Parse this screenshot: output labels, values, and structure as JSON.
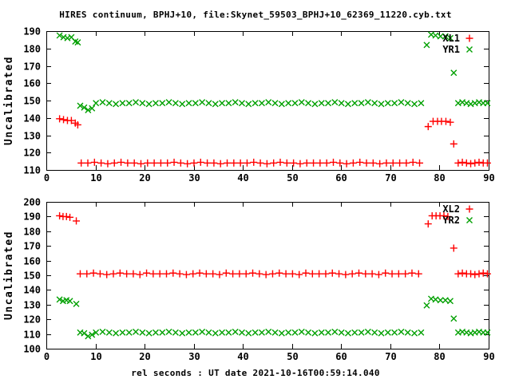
{
  "title": "HIRES continuum, BPHJ+10, file:Skynet_59503_BPHJ+10_62369_11220.cyb.txt",
  "xlabel": "rel seconds : UT date 2021-10-16T00:59:14.040",
  "colors": {
    "background": "#ffffff",
    "text": "#000000",
    "border": "#000000",
    "series_red": "#ff0000",
    "series_green": "#00a000"
  },
  "chart_data": [
    {
      "type": "scatter",
      "panel": "top",
      "ylabel": "Uncalibrated",
      "xlim": [
        0,
        90
      ],
      "ylim": [
        110,
        190
      ],
      "xticks": [
        0,
        10,
        20,
        30,
        40,
        50,
        60,
        70,
        80,
        90
      ],
      "yticks": [
        110,
        120,
        130,
        140,
        150,
        160,
        170,
        180,
        190
      ],
      "grid": false,
      "legend_position": "top-right",
      "series": [
        {
          "name": "XL1",
          "marker": "plus",
          "color": "#ff0000",
          "segments": [
            {
              "points": [
                [
                  2.7,
                  139.5
                ],
                [
                  3.5,
                  139
                ],
                [
                  4.3,
                  138.5
                ],
                [
                  5.1,
                  138.5
                ],
                [
                  5.9,
                  137
                ],
                [
                  6.4,
                  136
                ]
              ]
            },
            {
              "run": {
                "x0": 7.1,
                "x1": 76.0,
                "step": 1.35,
                "y": 114,
                "jitter": [
                  0,
                  0,
                  0.4,
                  0,
                  -0.4,
                  0,
                  0.4,
                  0,
                  0,
                  -0.4,
                  0,
                  0
                ]
              }
            },
            {
              "points": [
                [
                  77.7,
                  135
                ],
                [
                  78.7,
                  138
                ],
                [
                  79.6,
                  138
                ],
                [
                  80.4,
                  138
                ],
                [
                  81.3,
                  138
                ],
                [
                  82.2,
                  137.5
                ],
                [
                  82.9,
                  125
                ]
              ]
            },
            {
              "run": {
                "x0": 83.8,
                "x1": 89.8,
                "step": 0.85,
                "y": 114,
                "jitter": [
                  0,
                  0.4,
                  0,
                  -0.4,
                  0,
                  0.4,
                  0,
                  0
                ]
              }
            }
          ]
        },
        {
          "name": "YR1",
          "marker": "cross",
          "color": "#00a000",
          "segments": [
            {
              "points": [
                [
                  2.7,
                  187.5
                ],
                [
                  3.5,
                  186.5
                ],
                [
                  4.3,
                  186
                ],
                [
                  5.1,
                  186.5
                ],
                [
                  5.9,
                  184
                ],
                [
                  6.4,
                  183.5
                ]
              ]
            },
            {
              "points": [
                [
                  6.9,
                  147
                ],
                [
                  7.7,
                  146
                ],
                [
                  8.5,
                  144.5
                ],
                [
                  9.3,
                  145.5
                ]
              ]
            },
            {
              "run": {
                "x0": 10.1,
                "x1": 76.9,
                "step": 1.35,
                "y": 148.5,
                "jitter": [
                  0,
                  0.5,
                  0,
                  -0.5,
                  0,
                  0,
                  0.5,
                  0,
                  -0.5,
                  0
                ]
              }
            },
            {
              "points": [
                [
                  77.4,
                  182
                ],
                [
                  78.3,
                  188
                ],
                [
                  79.2,
                  187.5
                ],
                [
                  80.2,
                  187
                ],
                [
                  81.2,
                  187
                ],
                [
                  82.2,
                  186
                ],
                [
                  82.9,
                  166
                ]
              ]
            },
            {
              "run": {
                "x0": 83.8,
                "x1": 89.8,
                "step": 0.85,
                "y": 148.5,
                "jitter": [
                  0,
                  0.5,
                  0,
                  -0.5,
                  0,
                  0.5,
                  0,
                  0
                ]
              }
            }
          ]
        }
      ]
    },
    {
      "type": "scatter",
      "panel": "bottom",
      "ylabel": "Uncalibrated",
      "xlim": [
        0,
        90
      ],
      "ylim": [
        100,
        200
      ],
      "xticks": [
        0,
        10,
        20,
        30,
        40,
        50,
        60,
        70,
        80,
        90
      ],
      "yticks": [
        100,
        110,
        120,
        130,
        140,
        150,
        160,
        170,
        180,
        190,
        200
      ],
      "grid": false,
      "legend_position": "top-right",
      "series": [
        {
          "name": "XL2",
          "marker": "plus",
          "color": "#ff0000",
          "segments": [
            {
              "points": [
                [
                  2.7,
                  190.5
                ],
                [
                  3.4,
                  190
                ],
                [
                  4.1,
                  190
                ],
                [
                  4.8,
                  189.5
                ],
                [
                  6.1,
                  187
                ]
              ]
            },
            {
              "run": {
                "x0": 6.9,
                "x1": 76.9,
                "step": 1.35,
                "y": 151,
                "jitter": [
                  0,
                  0,
                  0.5,
                  0,
                  -0.5,
                  0,
                  0.5,
                  0,
                  0,
                  -0.5,
                  0.5,
                  0
                ]
              }
            },
            {
              "points": [
                [
                  77.7,
                  185
                ],
                [
                  78.5,
                  190.5
                ],
                [
                  79.3,
                  190.5
                ],
                [
                  80.1,
                  190.5
                ],
                [
                  80.9,
                  190.5
                ],
                [
                  81.7,
                  190
                ],
                [
                  82.9,
                  168.5
                ]
              ]
            },
            {
              "run": {
                "x0": 83.8,
                "x1": 89.8,
                "step": 0.85,
                "y": 151,
                "jitter": [
                  0,
                  0.5,
                  0,
                  0,
                  -0.5,
                  0,
                  0.5,
                  0
                ]
              }
            }
          ]
        },
        {
          "name": "YR2",
          "marker": "cross",
          "color": "#00a000",
          "segments": [
            {
              "points": [
                [
                  2.7,
                  133.5
                ],
                [
                  3.4,
                  132.5
                ],
                [
                  4.1,
                  133
                ],
                [
                  4.8,
                  132.5
                ],
                [
                  6.1,
                  130.5
                ]
              ]
            },
            {
              "points": [
                [
                  6.9,
                  111
                ],
                [
                  7.7,
                  110.5
                ],
                [
                  8.5,
                  108.5
                ],
                [
                  9.3,
                  109.5
                ]
              ]
            },
            {
              "run": {
                "x0": 10.1,
                "x1": 76.9,
                "step": 1.35,
                "y": 111,
                "jitter": [
                  0,
                  0.5,
                  0,
                  -0.5,
                  0,
                  0,
                  0.5,
                  0,
                  -0.5,
                  0
                ]
              }
            },
            {
              "points": [
                [
                  77.4,
                  129.5
                ],
                [
                  78.3,
                  134
                ],
                [
                  79.2,
                  133.5
                ],
                [
                  80.2,
                  133
                ],
                [
                  81.2,
                  133
                ],
                [
                  82.2,
                  132.5
                ],
                [
                  82.9,
                  120.5
                ]
              ]
            },
            {
              "run": {
                "x0": 83.8,
                "x1": 89.8,
                "step": 0.85,
                "y": 111,
                "jitter": [
                  0,
                  0.5,
                  0,
                  -0.5,
                  0,
                  0.5,
                  0,
                  0
                ]
              }
            }
          ]
        }
      ]
    }
  ]
}
